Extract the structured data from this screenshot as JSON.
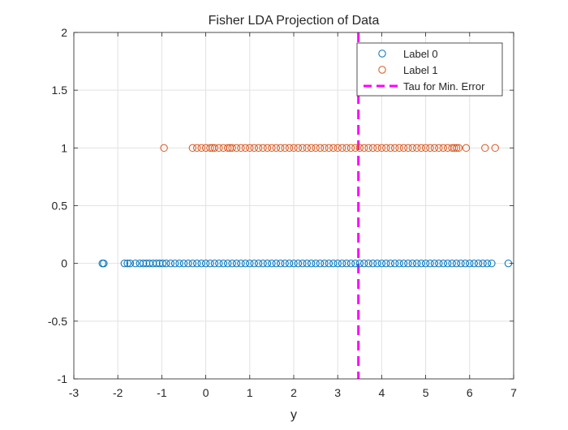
{
  "chart_data": {
    "type": "scatter",
    "title": "Fisher LDA Projection of Data",
    "xlabel": "y",
    "ylabel": "",
    "xlim": [
      -3,
      7
    ],
    "ylim": [
      -1,
      2
    ],
    "xticks": [
      -3,
      -2,
      -1,
      0,
      1,
      2,
      3,
      4,
      5,
      6,
      7
    ],
    "yticks": [
      -1,
      -0.5,
      0,
      0.5,
      1,
      1.5,
      2
    ],
    "xtick_labels": [
      "-3",
      "-2",
      "-1",
      "0",
      "1",
      "2",
      "3",
      "4",
      "5",
      "6",
      "7"
    ],
    "ytick_labels": [
      "-1",
      "-0.5",
      "0",
      "0.5",
      "1",
      "1.5",
      "2"
    ],
    "grid": true,
    "legend_position": "top-right",
    "series": [
      {
        "name": "Label 0",
        "color": "#0072BD",
        "marker": "circle-open",
        "y": 0,
        "x": [
          -2.35,
          -2.32,
          -1.85,
          -1.78,
          -1.72,
          -1.6,
          -1.5,
          -1.42,
          -1.35,
          -1.28,
          -1.2,
          -1.12,
          -1.05,
          -0.98,
          -0.9,
          -0.8,
          -0.7,
          -0.6,
          -0.5,
          -0.4,
          -0.3,
          -0.2,
          -0.1,
          0.0,
          0.1,
          0.2,
          0.3,
          0.4,
          0.5,
          0.6,
          0.7,
          0.8,
          0.9,
          1.0,
          1.1,
          1.2,
          1.3,
          1.4,
          1.5,
          1.6,
          1.7,
          1.8,
          1.9,
          2.0,
          2.1,
          2.2,
          2.3,
          2.4,
          2.5,
          2.6,
          2.7,
          2.8,
          2.9,
          3.0,
          3.1,
          3.2,
          3.3,
          3.4,
          3.5,
          3.6,
          3.7,
          3.8,
          3.9,
          4.0,
          4.1,
          4.2,
          4.3,
          4.4,
          4.5,
          4.6,
          4.7,
          4.8,
          4.9,
          5.0,
          5.1,
          5.2,
          5.3,
          5.4,
          5.5,
          5.6,
          5.7,
          5.8,
          5.9,
          6.0,
          6.1,
          6.2,
          6.3,
          6.4,
          6.5,
          6.88
        ]
      },
      {
        "name": "Label 1",
        "color": "#D95319",
        "marker": "circle-open",
        "y": 1,
        "x": [
          -0.95,
          -0.3,
          -0.2,
          -0.1,
          0.0,
          0.1,
          0.15,
          0.2,
          0.3,
          0.4,
          0.5,
          0.55,
          0.6,
          0.7,
          0.8,
          0.9,
          1.0,
          1.1,
          1.2,
          1.3,
          1.4,
          1.5,
          1.6,
          1.7,
          1.8,
          1.9,
          2.0,
          2.1,
          2.2,
          2.3,
          2.4,
          2.5,
          2.6,
          2.7,
          2.8,
          2.9,
          3.0,
          3.1,
          3.2,
          3.3,
          3.4,
          3.5,
          3.6,
          3.7,
          3.8,
          3.9,
          4.0,
          4.1,
          4.2,
          4.3,
          4.4,
          4.5,
          4.6,
          4.7,
          4.8,
          4.9,
          5.0,
          5.1,
          5.2,
          5.3,
          5.4,
          5.5,
          5.6,
          5.65,
          5.7,
          5.75,
          5.92,
          6.35,
          6.58
        ]
      }
    ],
    "threshold": {
      "name": "Tau for Min. Error",
      "x": 3.47,
      "color": "#FF00FF",
      "style": "dashed"
    }
  }
}
